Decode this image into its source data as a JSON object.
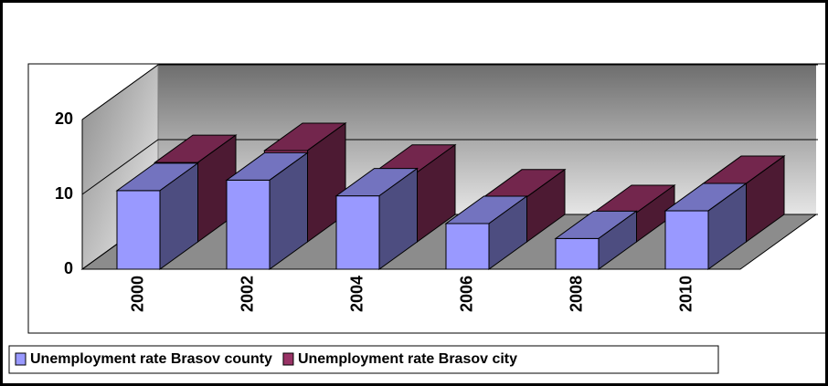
{
  "chart_data": {
    "type": "bar3d",
    "categories": [
      "2000",
      "2002",
      "2004",
      "2006",
      "2008",
      "2010"
    ],
    "series": [
      {
        "name": "Unemployment rate Brasov county",
        "color": "#9999ff",
        "values": [
          10.5,
          11.9,
          9.8,
          6.1,
          4.1,
          7.8
        ]
      },
      {
        "name": "Unemployment rate Brasov city",
        "color": "#993366",
        "values": [
          10.6,
          12.2,
          9.3,
          6.0,
          3.9,
          7.8
        ]
      }
    ],
    "ylim": [
      0,
      20
    ],
    "yticks": [
      0,
      10,
      20
    ],
    "grid": true
  }
}
